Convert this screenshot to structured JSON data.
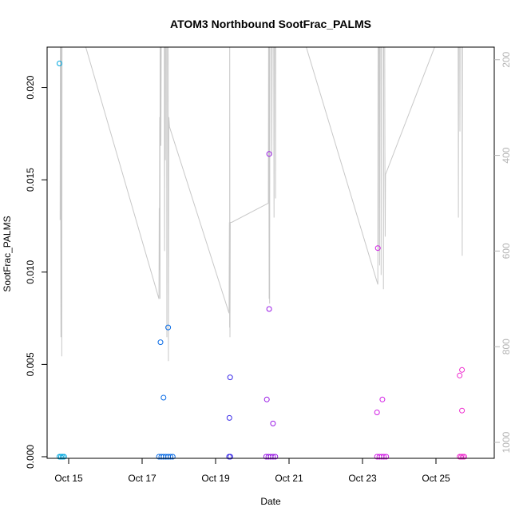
{
  "chart_data": {
    "type": "scatter",
    "title": "ATOM3 Northbound SootFrac_PALMS",
    "xlabel": "Date",
    "ylabel": "SootFrac_PALMS",
    "xlim": [
      "2017-10-14 12:00",
      "2017-10-26 12:00"
    ],
    "ylim": [
      0,
      0.0221
    ],
    "x_ticks": [
      {
        "label": "Oct 15",
        "x": "2017-10-15"
      },
      {
        "label": "Oct 17",
        "x": "2017-10-17"
      },
      {
        "label": "Oct 19",
        "x": "2017-10-19"
      },
      {
        "label": "Oct 21",
        "x": "2017-10-21"
      },
      {
        "label": "Oct 23",
        "x": "2017-10-23"
      },
      {
        "label": "Oct 25",
        "x": "2017-10-25"
      }
    ],
    "y_ticks": [
      {
        "label": "0.000",
        "y": 0
      },
      {
        "label": "0.005",
        "y": 0.005
      },
      {
        "label": "0.010",
        "y": 0.01
      },
      {
        "label": "0.015",
        "y": 0.015
      },
      {
        "label": "0.020",
        "y": 0.02
      }
    ],
    "secondary_axis": {
      "side": "right",
      "reversed": true,
      "color": "#b4b4b4",
      "ylim": [
        1030,
        177
      ],
      "ticks": [
        {
          "label": "200",
          "y": 200
        },
        {
          "label": "400",
          "y": 400
        },
        {
          "label": "600",
          "y": 600
        },
        {
          "label": "800",
          "y": 800
        },
        {
          "label": "1000",
          "y": 1000
        }
      ]
    },
    "pressure_line": [
      [
        "2017-10-14 18:25",
        535
      ],
      [
        "2017-10-14 18:35",
        150
      ],
      [
        "2017-10-14 18:45",
        400
      ],
      [
        "2017-10-14 18:55",
        780
      ],
      [
        "2017-10-14 19:05",
        150
      ],
      [
        "2017-10-14 19:20",
        150
      ],
      [
        "2017-10-14 19:30",
        820
      ],
      [
        "2017-10-14 19:40",
        150
      ],
      [
        "2017-10-15 09:00",
        150
      ],
      [
        "2017-10-17 11:00",
        700
      ],
      [
        "2017-10-17 11:10",
        510
      ],
      [
        "2017-10-17 11:20",
        640
      ],
      [
        "2017-10-17 11:30",
        320
      ],
      [
        "2017-10-17 11:40",
        700
      ],
      [
        "2017-10-17 11:45",
        150
      ],
      [
        "2017-10-17 12:00",
        150
      ],
      [
        "2017-10-17 12:15",
        380
      ],
      [
        "2017-10-17 12:30",
        150
      ],
      [
        "2017-10-17 14:30",
        150
      ],
      [
        "2017-10-17 14:40",
        600
      ],
      [
        "2017-10-17 14:50",
        150
      ],
      [
        "2017-10-17 15:00",
        150
      ],
      [
        "2017-10-17 15:10",
        410
      ],
      [
        "2017-10-17 15:20",
        150
      ],
      [
        "2017-10-17 16:00",
        150
      ],
      [
        "2017-10-17 16:10",
        780
      ],
      [
        "2017-10-17 16:20",
        150
      ],
      [
        "2017-10-17 17:00",
        150
      ],
      [
        "2017-10-17 17:10",
        830
      ],
      [
        "2017-10-17 17:30",
        320
      ],
      [
        "2017-10-17 17:50",
        340
      ],
      [
        "2017-10-19 08:50",
        730
      ],
      [
        "2017-10-19 09:00",
        540
      ],
      [
        "2017-10-19 09:10",
        760
      ],
      [
        "2017-10-19 09:15",
        150
      ],
      [
        "2017-10-19 09:25",
        780
      ],
      [
        "2017-10-19 09:35",
        540
      ],
      [
        "2017-10-19 10:30",
        540
      ],
      [
        "2017-10-20 10:30",
        500
      ],
      [
        "2017-10-20 10:40",
        150
      ],
      [
        "2017-10-20 10:50",
        450
      ],
      [
        "2017-10-20 11:00",
        700
      ],
      [
        "2017-10-20 11:10",
        150
      ],
      [
        "2017-10-20 11:20",
        710
      ],
      [
        "2017-10-20 11:30",
        150
      ],
      [
        "2017-10-20 12:30",
        150
      ],
      [
        "2017-10-20 12:45",
        400
      ],
      [
        "2017-10-20 13:00",
        150
      ],
      [
        "2017-10-20 14:00",
        150
      ],
      [
        "2017-10-20 14:10",
        530
      ],
      [
        "2017-10-20 14:20",
        150
      ],
      [
        "2017-10-20 15:00",
        150
      ],
      [
        "2017-10-20 15:10",
        490
      ],
      [
        "2017-10-20 15:20",
        150
      ],
      [
        "2017-10-21 09:00",
        150
      ],
      [
        "2017-10-23 10:00",
        670
      ],
      [
        "2017-10-23 10:10",
        150
      ],
      [
        "2017-10-23 10:20",
        600
      ],
      [
        "2017-10-23 10:30",
        150
      ],
      [
        "2017-10-23 11:00",
        150
      ],
      [
        "2017-10-23 11:10",
        630
      ],
      [
        "2017-10-23 11:20",
        150
      ],
      [
        "2017-10-23 12:00",
        150
      ],
      [
        "2017-10-23 12:10",
        650
      ],
      [
        "2017-10-23 12:20",
        150
      ],
      [
        "2017-10-23 13:30",
        150
      ],
      [
        "2017-10-23 13:40",
        680
      ],
      [
        "2017-10-23 13:50",
        150
      ],
      [
        "2017-10-23 14:30",
        150
      ],
      [
        "2017-10-23 14:40",
        450
      ],
      [
        "2017-10-23 14:50",
        570
      ],
      [
        "2017-10-23 15:00",
        440
      ],
      [
        "2017-10-25 02:00",
        150
      ],
      [
        "2017-10-25 14:30",
        150
      ],
      [
        "2017-10-25 14:40",
        530
      ],
      [
        "2017-10-25 14:50",
        150
      ],
      [
        "2017-10-25 15:30",
        150
      ],
      [
        "2017-10-25 15:40",
        350
      ],
      [
        "2017-10-25 15:50",
        150
      ],
      [
        "2017-10-25 17:00",
        150
      ],
      [
        "2017-10-25 17:10",
        610
      ],
      [
        "2017-10-25 17:20",
        150
      ]
    ],
    "series": [
      {
        "color": "#00A8E0",
        "points": [
          [
            "2017-10-14 18:00",
            0.0213
          ],
          [
            "2017-10-14 18:00",
            0
          ],
          [
            "2017-10-14 19:00",
            0
          ],
          [
            "2017-10-14 20:00",
            0
          ],
          [
            "2017-10-14 21:00",
            0
          ]
        ]
      },
      {
        "color": "#0A6CE6",
        "points": [
          [
            "2017-10-17 12:00",
            0.0062
          ],
          [
            "2017-10-17 14:00",
            0.0032
          ],
          [
            "2017-10-17 17:00",
            0.007
          ],
          [
            "2017-10-17 11:00",
            0
          ],
          [
            "2017-10-17 12:30",
            0
          ],
          [
            "2017-10-17 14:00",
            0
          ],
          [
            "2017-10-17 15:30",
            0
          ],
          [
            "2017-10-17 17:00",
            0
          ],
          [
            "2017-10-17 18:30",
            0
          ],
          [
            "2017-10-17 20:00",
            0
          ]
        ]
      },
      {
        "color": "#3A2BE8",
        "points": [
          [
            "2017-10-19 09:30",
            0.0043
          ],
          [
            "2017-10-19 09:00",
            0.0021
          ],
          [
            "2017-10-19 08:50",
            0
          ],
          [
            "2017-10-19 09:40",
            0
          ]
        ]
      },
      {
        "color": "#9A1AE6",
        "points": [
          [
            "2017-10-20 11:00",
            0.0164
          ],
          [
            "2017-10-20 11:00",
            0.008
          ],
          [
            "2017-10-20 09:30",
            0.0031
          ],
          [
            "2017-10-20 13:30",
            0.0018
          ],
          [
            "2017-10-20 09:00",
            0
          ],
          [
            "2017-10-20 10:30",
            0
          ],
          [
            "2017-10-20 12:00",
            0
          ],
          [
            "2017-10-20 13:30",
            0
          ],
          [
            "2017-10-20 15:00",
            0
          ]
        ]
      },
      {
        "color": "#D21EE6",
        "points": [
          [
            "2017-10-23 10:00",
            0.0113
          ],
          [
            "2017-10-23 13:00",
            0.0031
          ],
          [
            "2017-10-23 09:30",
            0.0024
          ],
          [
            "2017-10-23 09:30",
            0
          ],
          [
            "2017-10-23 11:00",
            0
          ],
          [
            "2017-10-23 12:30",
            0
          ],
          [
            "2017-10-23 14:00",
            0
          ],
          [
            "2017-10-23 15:30",
            0
          ]
        ]
      },
      {
        "color": "#EE2ACE",
        "points": [
          [
            "2017-10-25 17:00",
            0.0047
          ],
          [
            "2017-10-25 15:30",
            0.0044
          ],
          [
            "2017-10-25 17:00",
            0.0025
          ],
          [
            "2017-10-25 15:30",
            0
          ],
          [
            "2017-10-25 16:30",
            0
          ],
          [
            "2017-10-25 17:30",
            0
          ],
          [
            "2017-10-25 18:30",
            0
          ]
        ]
      }
    ],
    "line_color": "#c8c8c8",
    "grid": false,
    "legend": "none"
  }
}
